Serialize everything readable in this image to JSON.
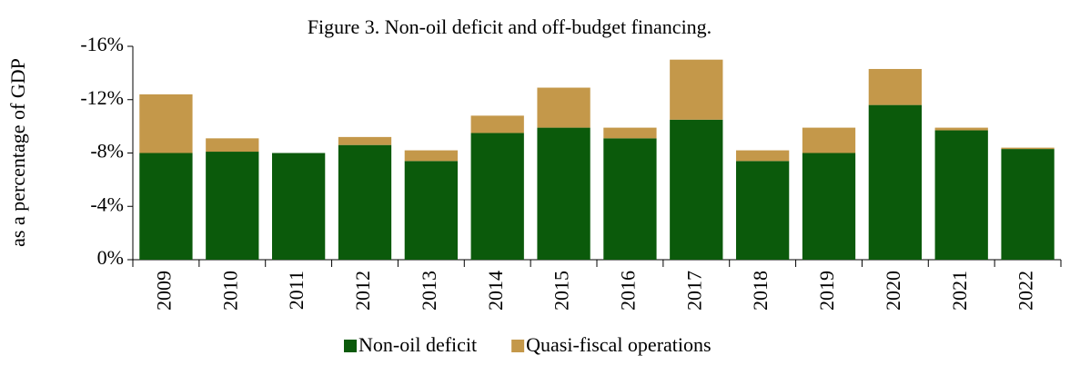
{
  "chart_data": {
    "type": "stacked_bar",
    "title": "Figure 3. Non-oil deficit and off-budget financing.",
    "y_label": "as a percentage of GDP",
    "categories": [
      "2009",
      "2010",
      "2011",
      "2012",
      "2013",
      "2014",
      "2015",
      "2016",
      "2017",
      "2018",
      "2019",
      "2020",
      "2021",
      "2022"
    ],
    "series": [
      {
        "name": "Non-oil deficit",
        "color": "#0b5a0b",
        "values": [
          -8.0,
          -8.1,
          -8.0,
          -8.6,
          -7.4,
          -9.5,
          -9.9,
          -9.1,
          -10.5,
          -7.4,
          -8.0,
          -11.6,
          -9.7,
          -8.3
        ]
      },
      {
        "name": "Quasi-fiscal operations",
        "color": "#c4984a",
        "values": [
          -4.4,
          -1.0,
          0,
          -0.6,
          -0.8,
          -1.3,
          -3.0,
          -0.8,
          -4.5,
          -0.8,
          -1.9,
          -2.7,
          -0.2,
          -0.1
        ]
      }
    ],
    "ylim": [
      0,
      -16
    ],
    "yticks": [
      {
        "value": 0,
        "label": "0%"
      },
      {
        "value": -4,
        "label": "-4%"
      },
      {
        "value": -8,
        "label": "-8%"
      },
      {
        "value": -12,
        "label": "-12%"
      },
      {
        "value": -16,
        "label": "-16%"
      }
    ],
    "grid": false,
    "legend": "bottom"
  }
}
